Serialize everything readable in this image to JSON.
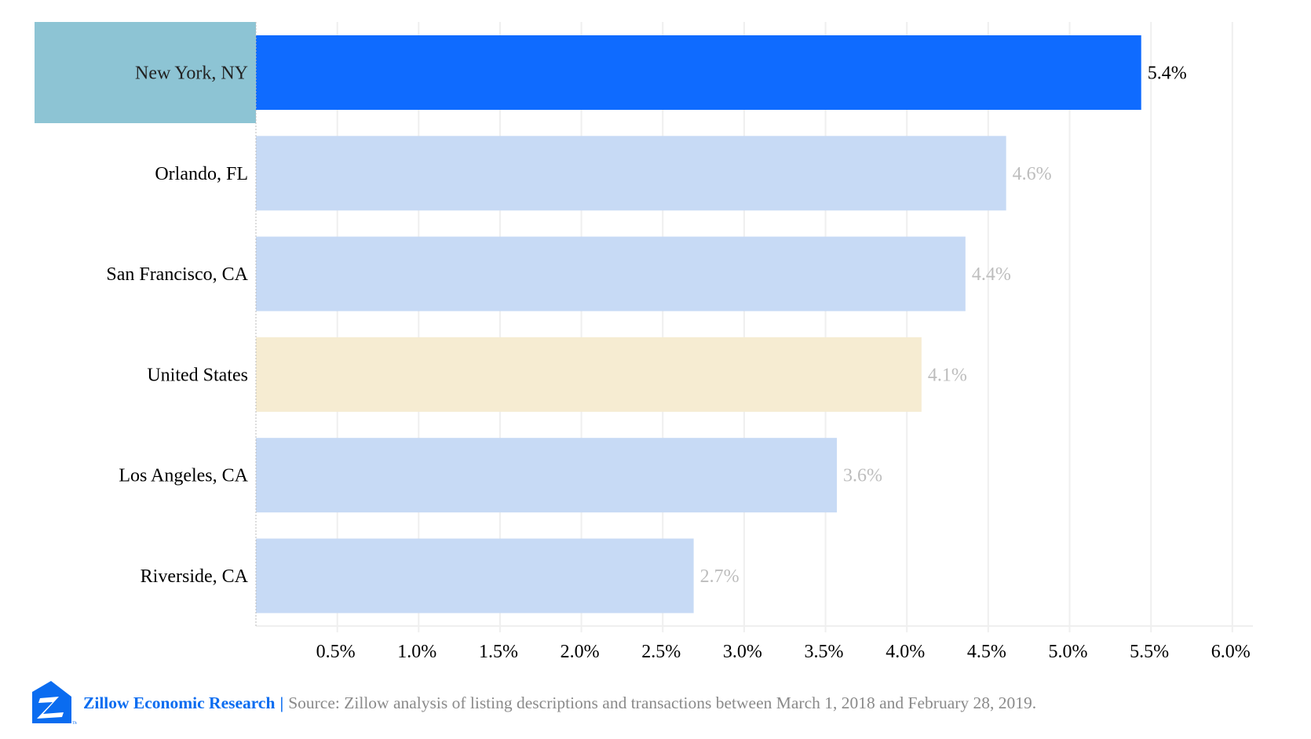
{
  "chart_data": {
    "type": "bar",
    "orientation": "horizontal",
    "categories": [
      "New York, NY",
      "Orlando, FL",
      "San Francisco, CA",
      "United States",
      "Los Angeles, CA",
      "Riverside, CA"
    ],
    "values": [
      5.44,
      4.61,
      4.36,
      4.09,
      3.57,
      2.69
    ],
    "data_labels": [
      "5.4%",
      "4.6%",
      "4.4%",
      "4.1%",
      "3.6%",
      "2.7%"
    ],
    "xlim": [
      0,
      6.15
    ],
    "x_ticks": [
      0.5,
      1.0,
      1.5,
      2.0,
      2.5,
      3.0,
      3.5,
      4.0,
      4.5,
      5.0,
      5.5,
      6.0
    ],
    "x_tick_labels": [
      "0.5%",
      "1.0%",
      "1.5%",
      "2.0%",
      "2.5%",
      "3.0%",
      "3.5%",
      "4.0%",
      "4.5%",
      "5.0%",
      "5.5%",
      "6.0%"
    ],
    "grid": "vertical",
    "highlight_category": "New York, NY",
    "colors": {
      "highlight_bar": "#0f6bff",
      "highlight_label_bg": "#8dc4d4",
      "default_bar": "#c7daf5",
      "national_bar": "#f6ecd2",
      "highlight_value_label": "#000000",
      "default_value_label": "#bdbdbd"
    }
  },
  "footer": {
    "logo": "zillow-logo",
    "brand": "Zillow Economic Research",
    "separator": "|",
    "source": "Source: Zillow analysis of listing descriptions and transactions between March 1, 2018 and February 28, 2019."
  }
}
